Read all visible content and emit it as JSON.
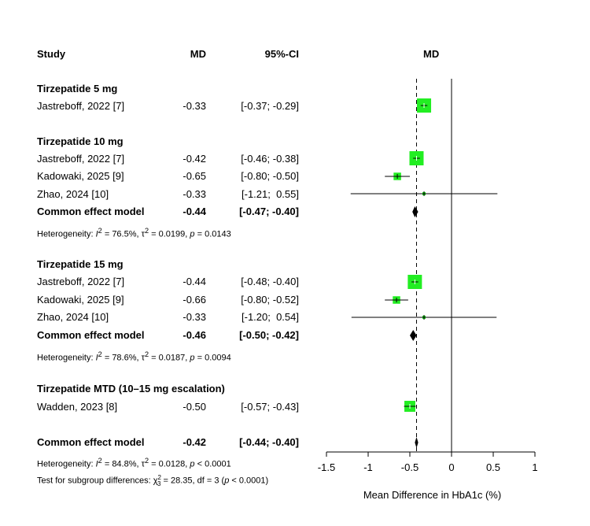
{
  "headers": {
    "study": "Study",
    "md": "MD",
    "ci": "95%-CI",
    "plot": "MD"
  },
  "subgroups": [
    {
      "title": "Tirzepatide 5 mg"
    },
    {
      "title": "Tirzepatide 10 mg",
      "heterogeneity": {
        "i2": "76.5%",
        "tau2": "0.0199",
        "p": "0.0143"
      }
    },
    {
      "title": "Tirzepatide 15 mg",
      "heterogeneity": {
        "i2": "78.6%",
        "tau2": "0.0187",
        "p": "0.0094"
      }
    },
    {
      "title": "Tirzepatide MTD (10–15 mg escalation)"
    }
  ],
  "overall": {
    "heterogeneity": {
      "i2": "84.8%",
      "tau2": "0.0128",
      "p": "< 0.0001"
    },
    "subgroup_test": {
      "chi2": "28.35",
      "df": "3",
      "p": "< 0.0001"
    }
  },
  "chart_data": {
    "type": "forest",
    "xlabel": "Mean Difference in HbA1c (%)",
    "xlim": [
      -1.5,
      1
    ],
    "xticks": [
      -1.5,
      -1,
      -0.5,
      0,
      0.5,
      1
    ],
    "reference_line": 0,
    "pooled_line": -0.42,
    "colors": {
      "study_box": "#22ee22",
      "diamond": "#000000",
      "line": "#000000"
    },
    "rows": [
      {
        "kind": "study",
        "label": "Jastreboff, 2022 [7]",
        "md": -0.33,
        "lo": -0.37,
        "hi": -0.29,
        "md_text": "-0.33",
        "ci_text": "[-0.37; -0.29]",
        "weight": 1.0
      },
      {
        "kind": "study",
        "label": "Jastreboff, 2022 [7]",
        "md": -0.42,
        "lo": -0.46,
        "hi": -0.38,
        "md_text": "-0.42",
        "ci_text": "[-0.46; -0.38]",
        "weight": 1.0
      },
      {
        "kind": "study",
        "label": "Kadowaki, 2025 [9]",
        "md": -0.65,
        "lo": -0.8,
        "hi": -0.5,
        "md_text": "-0.65",
        "ci_text": "[-0.80; -0.50]",
        "weight": 0.28
      },
      {
        "kind": "study",
        "label": "Zhao, 2024 [10]",
        "md": -0.33,
        "lo": -1.21,
        "hi": 0.55,
        "md_text": "-0.33",
        "ci_text": "[-1.21;  0.55]",
        "weight": 0.05
      },
      {
        "kind": "pooled",
        "label": "Common effect model",
        "md": -0.44,
        "lo": -0.47,
        "hi": -0.4,
        "md_text": "-0.44",
        "ci_text": "[-0.47; -0.40]"
      },
      {
        "kind": "study",
        "label": "Jastreboff, 2022 [7]",
        "md": -0.44,
        "lo": -0.48,
        "hi": -0.4,
        "md_text": "-0.44",
        "ci_text": "[-0.48; -0.40]",
        "weight": 1.0
      },
      {
        "kind": "study",
        "label": "Kadowaki, 2025 [9]",
        "md": -0.66,
        "lo": -0.8,
        "hi": -0.52,
        "md_text": "-0.66",
        "ci_text": "[-0.80; -0.52]",
        "weight": 0.28
      },
      {
        "kind": "study",
        "label": "Zhao, 2024 [10]",
        "md": -0.33,
        "lo": -1.2,
        "hi": 0.54,
        "md_text": "-0.33",
        "ci_text": "[-1.20;  0.54]",
        "weight": 0.05
      },
      {
        "kind": "pooled",
        "label": "Common effect model",
        "md": -0.46,
        "lo": -0.5,
        "hi": -0.42,
        "md_text": "-0.46",
        "ci_text": "[-0.50; -0.42]"
      },
      {
        "kind": "study",
        "label": "Wadden, 2023 [8]",
        "md": -0.5,
        "lo": -0.57,
        "hi": -0.43,
        "md_text": "-0.50",
        "ci_text": "[-0.57; -0.43]",
        "weight": 0.6
      },
      {
        "kind": "pooled",
        "label": "Common effect model",
        "md": -0.42,
        "lo": -0.44,
        "hi": -0.4,
        "md_text": "-0.42",
        "ci_text": "[-0.44; -0.40]"
      }
    ]
  }
}
